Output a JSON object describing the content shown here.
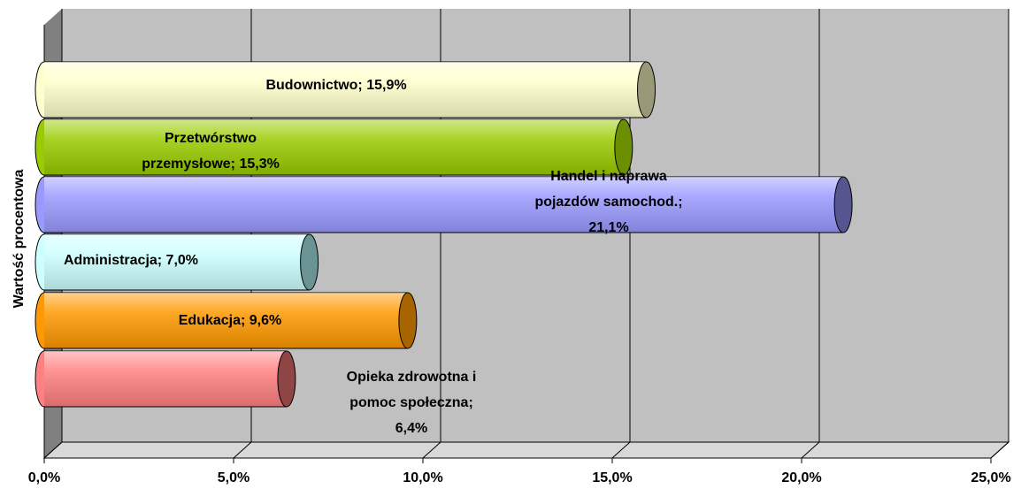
{
  "chart_data": {
    "type": "bar",
    "orientation": "horizontal",
    "y_axis_label": "Wartość procentowa",
    "values": [
      15.9,
      15.3,
      21.1,
      7.0,
      9.6,
      6.4
    ],
    "value_labels": [
      [
        "Budownictwo; 15,9%"
      ],
      [
        "Przetwórstwo",
        "przemysłowe; 15,3%"
      ],
      [
        "Handel i naprawa",
        "pojazdów samochod.;",
        "21,1%"
      ],
      [
        "Administracja; 7,0%"
      ],
      [
        "Edukacja; 9,6%"
      ],
      [
        "Opieka zdrowotna i",
        "pomoc społeczna;",
        "6,4%"
      ]
    ],
    "colors": [
      "#ffffcc",
      "#99cc00",
      "#9999ff",
      "#ccffff",
      "#ff9900",
      "#ff8080"
    ],
    "cap_colors": [
      "#999977",
      "#6b8f00",
      "#55558f",
      "#6a9494",
      "#a86400",
      "#8f4545"
    ],
    "xlim": [
      0,
      25
    ],
    "xticks": [
      {
        "value": 0,
        "label": "0,0%"
      },
      {
        "value": 5,
        "label": "5,0%"
      },
      {
        "value": 10,
        "label": "10,0%"
      },
      {
        "value": 15,
        "label": "15,0%"
      },
      {
        "value": 20,
        "label": "20,0%"
      },
      {
        "value": 25,
        "label": "25,0%"
      }
    ],
    "grid": true
  }
}
